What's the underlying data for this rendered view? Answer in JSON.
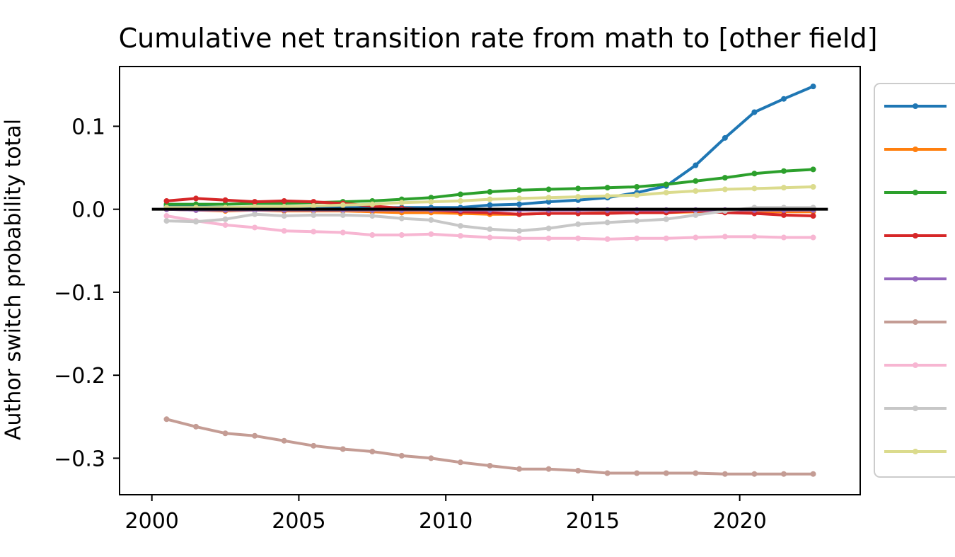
{
  "chart_data": {
    "type": "line",
    "title": "Cumulative net transition rate from math to [other field]",
    "xlabel": "",
    "ylabel": "Author switch probability total",
    "xlim": [
      1998.9,
      2024.1
    ],
    "ylim": [
      -0.344,
      0.172
    ],
    "xticks": [
      2000,
      2005,
      2010,
      2015,
      2020
    ],
    "xtick_labels": [
      "2000",
      "2005",
      "2010",
      "2015",
      "2020"
    ],
    "yticks": [
      0.1,
      0.0,
      -0.1,
      -0.2,
      -0.3
    ],
    "ytick_labels": [
      "0.1",
      "0.0",
      "−0.1",
      "−0.2",
      "−0.3"
    ],
    "grid": false,
    "legend_position": "right, outside plot",
    "x": [
      2000.5,
      2001.5,
      2002.5,
      2003.5,
      2004.5,
      2005.5,
      2006.5,
      2007.5,
      2008.5,
      2009.5,
      2010.5,
      2011.5,
      2012.5,
      2013.5,
      2014.5,
      2015.5,
      2016.5,
      2017.5,
      2018.5,
      2019.5,
      2020.5,
      2021.5,
      2022.5
    ],
    "series": [
      {
        "color": "#1f77b4",
        "values": [
          0.004,
          0.003,
          0.002,
          0.002,
          0.002,
          0.002,
          0.002,
          0.002,
          0.002,
          0.002,
          0.002,
          0.005,
          0.006,
          0.009,
          0.011,
          0.014,
          0.02,
          0.028,
          0.053,
          0.086,
          0.117,
          0.133,
          0.148
        ]
      },
      {
        "color": "#ff7f0e",
        "values": [
          0.0,
          -0.001,
          -0.002,
          -0.001,
          -0.002,
          -0.002,
          -0.002,
          -0.003,
          -0.004,
          -0.004,
          -0.005,
          -0.006,
          -0.006,
          -0.005,
          -0.005,
          -0.004,
          -0.004,
          -0.004,
          -0.003,
          -0.003,
          -0.003,
          -0.003,
          -0.003
        ]
      },
      {
        "color": "#2ca02c",
        "values": [
          0.006,
          0.006,
          0.006,
          0.007,
          0.007,
          0.008,
          0.009,
          0.01,
          0.012,
          0.014,
          0.018,
          0.021,
          0.023,
          0.024,
          0.025,
          0.026,
          0.027,
          0.03,
          0.034,
          0.038,
          0.043,
          0.046,
          0.048
        ]
      },
      {
        "color": "#d62728",
        "values": [
          0.01,
          0.013,
          0.011,
          0.009,
          0.01,
          0.009,
          0.007,
          0.004,
          0.001,
          -0.001,
          -0.003,
          -0.004,
          -0.006,
          -0.005,
          -0.005,
          -0.005,
          -0.004,
          -0.004,
          -0.002,
          -0.004,
          -0.005,
          -0.007,
          -0.008
        ]
      },
      {
        "color": "#9467bd",
        "values": [
          0.0,
          -0.001,
          -0.001,
          -0.001,
          -0.001,
          -0.001,
          -0.001,
          -0.001,
          -0.001,
          -0.001,
          -0.001,
          -0.001,
          -0.001,
          -0.001,
          -0.001,
          -0.001,
          -0.001,
          -0.001,
          -0.001,
          -0.001,
          -0.001,
          -0.001,
          -0.001
        ]
      },
      {
        "color": "#c49c94",
        "values": [
          -0.253,
          -0.262,
          -0.27,
          -0.273,
          -0.279,
          -0.285,
          -0.289,
          -0.292,
          -0.297,
          -0.3,
          -0.305,
          -0.309,
          -0.313,
          -0.313,
          -0.315,
          -0.318,
          -0.318,
          -0.318,
          -0.318,
          -0.319,
          -0.319,
          -0.319,
          -0.319
        ]
      },
      {
        "color": "#f7b6d2",
        "values": [
          -0.008,
          -0.014,
          -0.019,
          -0.022,
          -0.026,
          -0.027,
          -0.028,
          -0.031,
          -0.031,
          -0.03,
          -0.032,
          -0.034,
          -0.035,
          -0.035,
          -0.035,
          -0.036,
          -0.035,
          -0.035,
          -0.034,
          -0.033,
          -0.033,
          -0.034,
          -0.034
        ]
      },
      {
        "color": "#c7c7c7",
        "values": [
          -0.014,
          -0.015,
          -0.012,
          -0.006,
          -0.008,
          -0.007,
          -0.007,
          -0.008,
          -0.011,
          -0.013,
          -0.02,
          -0.024,
          -0.026,
          -0.023,
          -0.018,
          -0.016,
          -0.014,
          -0.012,
          -0.007,
          -0.002,
          0.002,
          0.002,
          0.002
        ]
      },
      {
        "color": "#dbdb8d",
        "values": [
          0.002,
          0.002,
          0.002,
          0.003,
          0.003,
          0.004,
          0.005,
          0.006,
          0.008,
          0.009,
          0.01,
          0.012,
          0.013,
          0.014,
          0.015,
          0.016,
          0.017,
          0.02,
          0.022,
          0.024,
          0.025,
          0.026,
          0.027
        ]
      }
    ],
    "reference_line": {
      "y": 0.0,
      "x_range": [
        2000,
        2023
      ],
      "color": "#000000"
    }
  }
}
